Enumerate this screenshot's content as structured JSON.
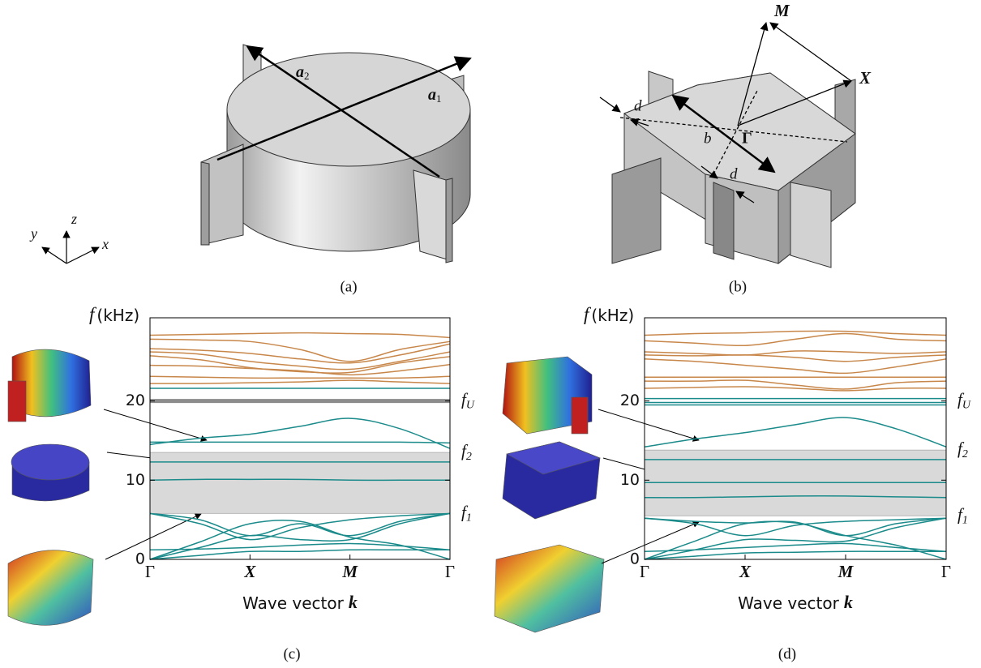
{
  "diagrams": {
    "a": {
      "caption": "(a)",
      "vector_1": "a",
      "vector_1_sub": "1",
      "vector_2": "a",
      "vector_2_sub": "2"
    },
    "b": {
      "caption": "(b)",
      "point_m": "M",
      "point_x": "X",
      "point_gamma": "Γ",
      "width_b": "b",
      "gap_d_1": "d",
      "gap_d_2": "d"
    },
    "axes": {
      "x": "x",
      "y": "y",
      "z": "z"
    }
  },
  "chart_data": [
    {
      "type": "line",
      "caption": "(c)",
      "ylabel_symbol": "f",
      "ylabel_unit": "(kHz)",
      "xlabel": "Wave vector",
      "xlabel_symbol": "k",
      "x": [
        0,
        0.5,
        1,
        1.5,
        2,
        2.5,
        3
      ],
      "xlim": [
        0,
        3
      ],
      "xticks": [
        {
          "value": 0,
          "label": "Γ"
        },
        {
          "value": 1,
          "label": "X"
        },
        {
          "value": 2,
          "label": "M"
        },
        {
          "value": 3,
          "label": "Γ"
        }
      ],
      "ylim": [
        0,
        30.5
      ],
      "yticks": [
        0,
        10,
        20
      ],
      "band_gap": [
        5.8,
        13.5
      ],
      "band_gap_color": "#d9d9d9",
      "annotations": [
        {
          "symbol": "f",
          "subscript": "U",
          "value": 20
        },
        {
          "symbol": "f",
          "subscript": "2",
          "value": 13.5
        },
        {
          "symbol": "f",
          "subscript": "1",
          "value": 5.8
        }
      ],
      "series": [
        {
          "color": "#c8874a",
          "values": [
            28.3,
            28.4,
            28.5,
            28.6,
            28.5,
            28.4,
            28.0
          ]
        },
        {
          "color": "#c8874a",
          "values": [
            27.8,
            27.7,
            27.5,
            26.5,
            25.0,
            26.5,
            27.5
          ]
        },
        {
          "color": "#c8874a",
          "values": [
            26.6,
            26.4,
            26.0,
            25.3,
            24.8,
            25.8,
            27.2
          ]
        },
        {
          "color": "#c8874a",
          "values": [
            26.2,
            25.9,
            25.0,
            24.4,
            24.0,
            25.0,
            26.2
          ]
        },
        {
          "color": "#c8874a",
          "values": [
            25.7,
            25.2,
            24.2,
            23.7,
            23.6,
            24.8,
            25.6
          ]
        },
        {
          "color": "#c8874a",
          "values": [
            24.5,
            24.4,
            24.1,
            23.8,
            23.3,
            23.8,
            24.6
          ]
        },
        {
          "color": "#c8874a",
          "values": [
            23.1,
            23.0,
            22.9,
            22.9,
            22.9,
            22.9,
            23.1
          ]
        },
        {
          "color": "#c8874a",
          "values": [
            22.2,
            22.2,
            22.3,
            22.4,
            22.6,
            22.4,
            22.2
          ]
        },
        {
          "color": "#1a8a8a",
          "values": [
            21.6,
            21.6,
            21.6,
            21.6,
            21.6,
            21.6,
            21.6
          ]
        },
        {
          "color": "#8c8c8c",
          "values": [
            20,
            20,
            20,
            20,
            20,
            20,
            20
          ]
        },
        {
          "color": "#1a8a8a",
          "values": [
            14.5,
            15.3,
            15.8,
            16.8,
            17.8,
            16.5,
            14.0
          ]
        },
        {
          "color": "#1a8a8a",
          "values": [
            14.8,
            14.8,
            14.8,
            14.8,
            14.8,
            14.8,
            14.7
          ]
        },
        {
          "color": "#1a8a8a",
          "values": [
            12.3,
            12.3,
            12.3,
            12.3,
            12.3,
            12.3,
            12.3
          ]
        },
        {
          "color": "#1a8a8a",
          "values": [
            10.0,
            10.1,
            10.1,
            10.1,
            10.0,
            10.0,
            10.0
          ]
        },
        {
          "color": "#1a8a8a",
          "values": [
            5.8,
            4.5,
            2.5,
            4.0,
            5.0,
            5.5,
            5.8
          ]
        },
        {
          "color": "#1a8a8a",
          "values": [
            5.8,
            5.0,
            3.0,
            4.5,
            3.0,
            4.8,
            5.8
          ]
        },
        {
          "color": "#1a8a8a",
          "values": [
            0,
            2.2,
            4.5,
            4.8,
            2.8,
            1.8,
            0
          ]
        },
        {
          "color": "#1a8a8a",
          "values": [
            0,
            1.5,
            3.0,
            2.5,
            2.5,
            4.5,
            5.8
          ]
        },
        {
          "color": "#1a8a8a",
          "values": [
            1.2,
            1.3,
            1.5,
            1.8,
            2.0,
            1.7,
            1.2
          ]
        },
        {
          "color": "#1a8a8a",
          "values": [
            0,
            0.5,
            1.0,
            1.0,
            1.2,
            1.2,
            1.2
          ]
        }
      ]
    },
    {
      "type": "line",
      "caption": "(d)",
      "ylabel_symbol": "f",
      "ylabel_unit": "(kHz)",
      "xlabel": "Wave vector",
      "xlabel_symbol": "k",
      "x": [
        0,
        0.5,
        1,
        1.5,
        2,
        2.5,
        3
      ],
      "xlim": [
        0,
        3
      ],
      "xticks": [
        {
          "value": 0,
          "label": "Γ"
        },
        {
          "value": 1,
          "label": "X"
        },
        {
          "value": 2,
          "label": "M"
        },
        {
          "value": 3,
          "label": "Γ"
        }
      ],
      "ylim": [
        0,
        30.5
      ],
      "yticks": [
        0,
        10,
        20
      ],
      "band_gap": [
        5.5,
        13.8
      ],
      "band_gap_color": "#d9d9d9",
      "annotations": [
        {
          "symbol": "f",
          "subscript": "U",
          "value": 20
        },
        {
          "symbol": "f",
          "subscript": "2",
          "value": 13.8
        },
        {
          "symbol": "f",
          "subscript": "1",
          "value": 5.5
        }
      ],
      "series": [
        {
          "color": "#c8874a",
          "values": [
            28.3,
            28.5,
            28.6,
            28.8,
            28.8,
            28.5,
            28.3
          ]
        },
        {
          "color": "#c8874a",
          "values": [
            27.6,
            27.3,
            27.0,
            27.8,
            28.5,
            27.8,
            27.6
          ]
        },
        {
          "color": "#c8874a",
          "values": [
            26.2,
            26.0,
            25.8,
            26.3,
            26.2,
            26.0,
            26.2
          ]
        },
        {
          "color": "#c8874a",
          "values": [
            25.8,
            25.7,
            25.8,
            25.5,
            25.0,
            25.5,
            25.8
          ]
        },
        {
          "color": "#c8874a",
          "values": [
            25.3,
            25.0,
            24.5,
            24.0,
            23.5,
            24.3,
            25.3
          ]
        },
        {
          "color": "#c8874a",
          "values": [
            23.0,
            23.0,
            23.0,
            23.0,
            23.0,
            23.0,
            23.0
          ]
        },
        {
          "color": "#c8874a",
          "values": [
            22.5,
            22.5,
            22.6,
            22.0,
            21.5,
            22.3,
            22.5
          ]
        },
        {
          "color": "#c8874a",
          "values": [
            21.6,
            21.7,
            21.8,
            21.6,
            21.3,
            21.6,
            21.6
          ]
        },
        {
          "color": "#1a8a8a",
          "values": [
            20.3,
            20.3,
            20.3,
            20.3,
            20.3,
            20.3,
            20.3
          ]
        },
        {
          "color": "#1a8a8a",
          "values": [
            19.8,
            19.8,
            19.8,
            19.8,
            19.8,
            19.8,
            19.8
          ]
        },
        {
          "color": "#1a8a8a",
          "values": [
            19.5,
            19.5,
            19.5,
            19.5,
            19.5,
            19.5,
            19.5
          ]
        },
        {
          "color": "#1a8a8a",
          "values": [
            14.2,
            15.2,
            16.0,
            17.0,
            17.9,
            16.5,
            14.2
          ]
        },
        {
          "color": "#1a8a8a",
          "values": [
            12.6,
            12.6,
            12.6,
            12.6,
            12.6,
            12.6,
            12.6
          ]
        },
        {
          "color": "#1a8a8a",
          "values": [
            9.7,
            9.7,
            9.7,
            9.7,
            9.7,
            9.7,
            9.7
          ]
        },
        {
          "color": "#1a8a8a",
          "values": [
            7.8,
            7.8,
            7.9,
            8.0,
            8.0,
            7.9,
            7.8
          ]
        },
        {
          "color": "#1a8a8a",
          "values": [
            5.2,
            4.5,
            3.0,
            4.3,
            4.8,
            5.0,
            5.2
          ]
        },
        {
          "color": "#1a8a8a",
          "values": [
            5.2,
            4.8,
            4.6,
            4.7,
            3.0,
            4.5,
            5.2
          ]
        },
        {
          "color": "#1a8a8a",
          "values": [
            0,
            2.3,
            4.5,
            4.6,
            3.0,
            1.8,
            0
          ]
        },
        {
          "color": "#1a8a8a",
          "values": [
            0,
            1.2,
            2.5,
            2.4,
            2.3,
            4.0,
            5.2
          ]
        },
        {
          "color": "#1a8a8a",
          "values": [
            1.0,
            1.2,
            1.5,
            1.8,
            2.0,
            1.5,
            1.0
          ]
        },
        {
          "color": "#1a8a8a",
          "values": [
            0,
            0.4,
            0.8,
            0.9,
            1.0,
            1.0,
            1.0
          ]
        }
      ]
    }
  ]
}
